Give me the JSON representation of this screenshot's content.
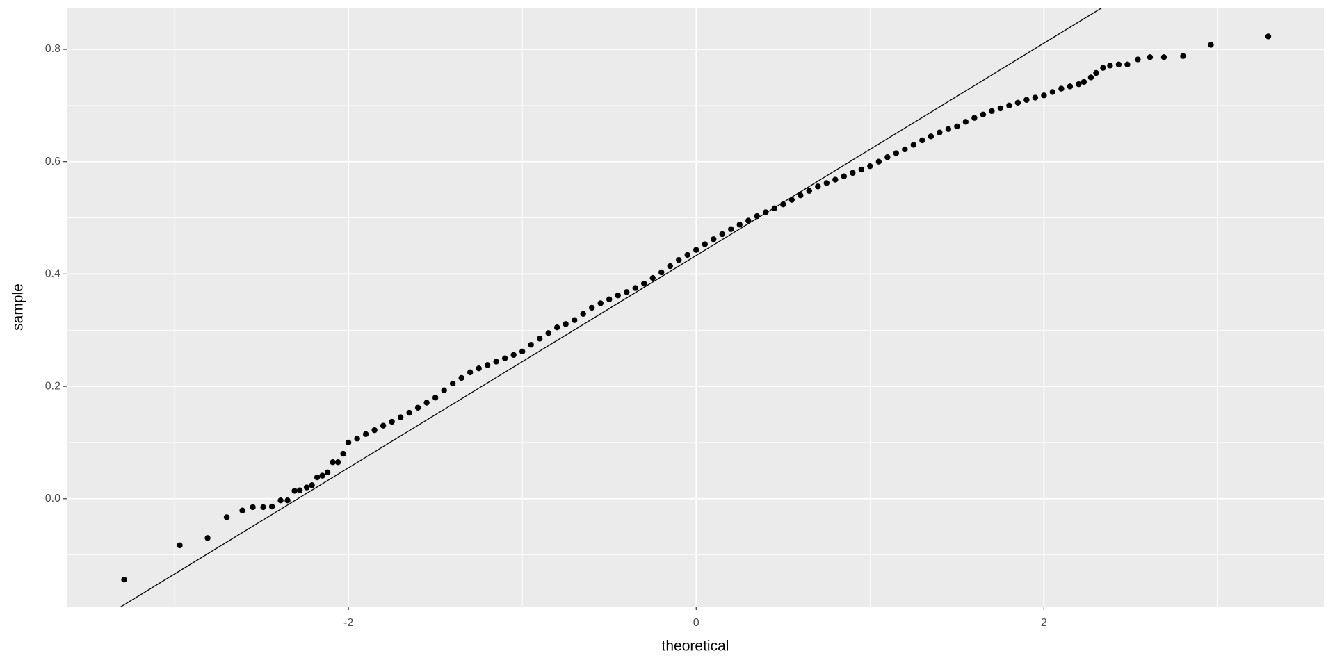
{
  "chart_data": {
    "type": "scatter",
    "x_label": "theoretical",
    "y_label": "sample",
    "xlim": [
      -3.62,
      3.61
    ],
    "ylim": [
      -0.192,
      0.873
    ],
    "xticks": [
      -2,
      0,
      2
    ],
    "yticks": [
      {
        "value": 0,
        "label": "0.0"
      },
      0.2,
      0.4,
      0.6,
      0.8
    ],
    "xminor": [
      -3,
      -1,
      1,
      3
    ],
    "yminor": [
      -0.1,
      0.1,
      0.3,
      0.5,
      0.7
    ],
    "grid": true,
    "panel_color": "#ebebeb",
    "color": "#000000",
    "reference_line": {
      "intercept": 0.433,
      "slope": 0.189,
      "color": "#000000"
    },
    "x": [
      -3.29,
      -2.97,
      -2.81,
      -2.7,
      -2.61,
      -2.55,
      -2.49,
      -2.44,
      -2.39,
      -2.35,
      -2.31,
      -2.28,
      -2.24,
      -2.21,
      -2.18,
      -2.15,
      -2.12,
      -2.09,
      -2.06,
      -2.03,
      -2.0,
      -1.95,
      -1.9,
      -1.85,
      -1.8,
      -1.75,
      -1.7,
      -1.65,
      -1.6,
      -1.55,
      -1.5,
      -1.45,
      -1.4,
      -1.35,
      -1.3,
      -1.25,
      -1.2,
      -1.15,
      -1.1,
      -1.05,
      -1.0,
      -0.95,
      -0.9,
      -0.85,
      -0.8,
      -0.75,
      -0.7,
      -0.65,
      -0.6,
      -0.55,
      -0.5,
      -0.45,
      -0.4,
      -0.35,
      -0.3,
      -0.25,
      -0.2,
      -0.15,
      -0.1,
      -0.05,
      0.0,
      0.05,
      0.1,
      0.15,
      0.2,
      0.25,
      0.3,
      0.35,
      0.4,
      0.45,
      0.5,
      0.55,
      0.6,
      0.65,
      0.7,
      0.75,
      0.8,
      0.85,
      0.9,
      0.95,
      1.0,
      1.05,
      1.1,
      1.15,
      1.2,
      1.25,
      1.3,
      1.35,
      1.4,
      1.45,
      1.5,
      1.55,
      1.6,
      1.65,
      1.7,
      1.75,
      1.8,
      1.85,
      1.9,
      1.95,
      2.0,
      2.05,
      2.1,
      2.15,
      2.2,
      2.23,
      2.27,
      2.3,
      2.34,
      2.38,
      2.43,
      2.48,
      2.54,
      2.61,
      2.69,
      2.8,
      2.96,
      3.29
    ],
    "values": [
      -0.144,
      -0.083,
      -0.07,
      -0.033,
      -0.021,
      -0.015,
      -0.015,
      -0.014,
      -0.003,
      -0.003,
      0.014,
      0.015,
      0.02,
      0.024,
      0.038,
      0.041,
      0.047,
      0.065,
      0.065,
      0.08,
      0.1,
      0.107,
      0.115,
      0.122,
      0.13,
      0.137,
      0.145,
      0.153,
      0.162,
      0.171,
      0.18,
      0.193,
      0.205,
      0.215,
      0.225,
      0.232,
      0.238,
      0.244,
      0.25,
      0.256,
      0.262,
      0.274,
      0.285,
      0.295,
      0.305,
      0.311,
      0.318,
      0.329,
      0.34,
      0.348,
      0.355,
      0.362,
      0.368,
      0.375,
      0.383,
      0.393,
      0.403,
      0.414,
      0.425,
      0.434,
      0.443,
      0.453,
      0.462,
      0.471,
      0.48,
      0.488,
      0.495,
      0.503,
      0.51,
      0.517,
      0.524,
      0.532,
      0.54,
      0.548,
      0.556,
      0.562,
      0.568,
      0.574,
      0.58,
      0.586,
      0.592,
      0.6,
      0.608,
      0.615,
      0.622,
      0.63,
      0.638,
      0.645,
      0.652,
      0.658,
      0.663,
      0.671,
      0.678,
      0.684,
      0.69,
      0.695,
      0.7,
      0.705,
      0.71,
      0.714,
      0.718,
      0.724,
      0.73,
      0.734,
      0.738,
      0.742,
      0.75,
      0.758,
      0.767,
      0.771,
      0.773,
      0.773,
      0.782,
      0.786,
      0.786,
      0.788,
      0.808,
      0.823
    ]
  }
}
